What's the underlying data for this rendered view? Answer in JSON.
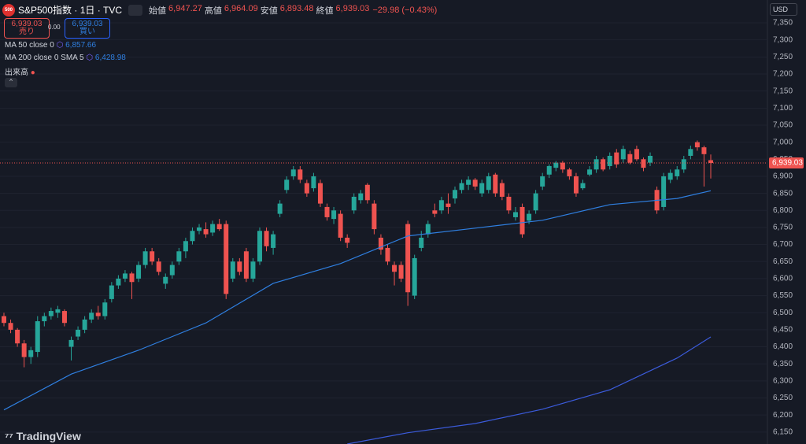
{
  "chart_data": {
    "type": "candlestick",
    "symbol": "S&P500指数 · 1日 · TVC",
    "logo": "500",
    "ohlc_header": [
      {
        "label": "始値",
        "value": "6,947.27"
      },
      {
        "label": "高値",
        "value": "6,964.09"
      },
      {
        "label": "安値",
        "value": "6,893.48"
      },
      {
        "label": "終値",
        "value": "6,939.03"
      }
    ],
    "change": "−29.98 (−0.43%)",
    "sell": {
      "price": "6,939.03",
      "label": "売り"
    },
    "spread": "0.00",
    "buy": {
      "price": "6,939.03",
      "label": "買い"
    },
    "volume_label": "出来高",
    "currency": "USD",
    "brand": "TradingView",
    "price_label": "6,939.03",
    "up_color": "#26a69a",
    "down_color": "#ef5350",
    "ylim": [
      6115,
      7417
    ],
    "yticks": [
      {
        "value": 6150,
        "label": "6,150"
      },
      {
        "value": 6200,
        "label": "6,200"
      },
      {
        "value": 6250,
        "label": "6,250"
      },
      {
        "value": 6300,
        "label": "6,300"
      },
      {
        "value": 6350,
        "label": "6,350"
      },
      {
        "value": 6400,
        "label": "6,400"
      },
      {
        "value": 6450,
        "label": "6,450"
      },
      {
        "value": 6500,
        "label": "6,500"
      },
      {
        "value": 6550,
        "label": "6,550"
      },
      {
        "value": 6600,
        "label": "6,600"
      },
      {
        "value": 6650,
        "label": "6,650"
      },
      {
        "value": 6700,
        "label": "6,700"
      },
      {
        "value": 6750,
        "label": "6,750"
      },
      {
        "value": 6800,
        "label": "6,800"
      },
      {
        "value": 6850,
        "label": "6,850"
      },
      {
        "value": 6900,
        "label": "6,900"
      },
      {
        "value": 6950,
        "label": "6,950"
      },
      {
        "value": 7000,
        "label": "7,000"
      },
      {
        "value": 7050,
        "label": "7,050"
      },
      {
        "value": 7100,
        "label": "7,100"
      },
      {
        "value": 7150,
        "label": "7,150"
      },
      {
        "value": 7200,
        "label": "7,200"
      },
      {
        "value": 7250,
        "label": "7,250"
      },
      {
        "value": 7300,
        "label": "7,300"
      },
      {
        "value": 7350,
        "label": "7,350"
      }
    ],
    "candles": [
      [
        6490,
        6500,
        6460,
        6470
      ],
      [
        6470,
        6480,
        6440,
        6450
      ],
      [
        6450,
        6455,
        6400,
        6410
      ],
      [
        6410,
        6420,
        6340,
        6370
      ],
      [
        6370,
        6400,
        6350,
        6390
      ],
      [
        6385,
        6490,
        6370,
        6475
      ],
      [
        6475,
        6500,
        6460,
        6490
      ],
      [
        6490,
        6515,
        6480,
        6505
      ],
      [
        6500,
        6520,
        6485,
        6510
      ],
      [
        6505,
        6510,
        6460,
        6470
      ],
      [
        6400,
        6430,
        6360,
        6420
      ],
      [
        6430,
        6460,
        6420,
        6450
      ],
      [
        6450,
        6490,
        6440,
        6480
      ],
      [
        6480,
        6510,
        6470,
        6500
      ],
      [
        6500,
        6520,
        6480,
        6490
      ],
      [
        6490,
        6540,
        6480,
        6530
      ],
      [
        6540,
        6590,
        6530,
        6580
      ],
      [
        6580,
        6610,
        6570,
        6600
      ],
      [
        6600,
        6625,
        6590,
        6615
      ],
      [
        6615,
        6620,
        6540,
        6590
      ],
      [
        6600,
        6650,
        6590,
        6640
      ],
      [
        6640,
        6690,
        6630,
        6680
      ],
      [
        6680,
        6690,
        6640,
        6650
      ],
      [
        6650,
        6660,
        6610,
        6620
      ],
      [
        6585,
        6615,
        6570,
        6605
      ],
      [
        6610,
        6650,
        6600,
        6640
      ],
      [
        6650,
        6690,
        6640,
        6680
      ],
      [
        6680,
        6720,
        6660,
        6710
      ],
      [
        6710,
        6750,
        6700,
        6740
      ],
      [
        6740,
        6760,
        6730,
        6750
      ],
      [
        6745,
        6765,
        6720,
        6730
      ],
      [
        6735,
        6770,
        6725,
        6760
      ],
      [
        6760,
        6775,
        6740,
        6745
      ],
      [
        6760,
        6770,
        6540,
        6555
      ],
      [
        6600,
        6660,
        6590,
        6650
      ],
      [
        6650,
        6660,
        6610,
        6620
      ],
      [
        6680,
        6690,
        6590,
        6600
      ],
      [
        6600,
        6660,
        6590,
        6650
      ],
      [
        6650,
        6750,
        6640,
        6740
      ],
      [
        6740,
        6750,
        6680,
        6695
      ],
      [
        6690,
        6740,
        6670,
        6730
      ],
      [
        6790,
        6830,
        6780,
        6820
      ],
      [
        6860,
        6900,
        6850,
        6890
      ],
      [
        6900,
        6930,
        6890,
        6920
      ],
      [
        6920,
        6930,
        6880,
        6890
      ],
      [
        6880,
        6890,
        6840,
        6850
      ],
      [
        6865,
        6910,
        6855,
        6900
      ],
      [
        6880,
        6890,
        6810,
        6820
      ],
      [
        6810,
        6820,
        6770,
        6780
      ],
      [
        6775,
        6810,
        6760,
        6800
      ],
      [
        6790,
        6800,
        6710,
        6720
      ],
      [
        6720,
        6730,
        6690,
        6705
      ],
      [
        6800,
        6850,
        6790,
        6840
      ],
      [
        6830,
        6860,
        6820,
        6850
      ],
      [
        6875,
        6880,
        6820,
        6830
      ],
      [
        6820,
        6830,
        6730,
        6745
      ],
      [
        6720,
        6730,
        6670,
        6685
      ],
      [
        6690,
        6700,
        6640,
        6650
      ],
      [
        6640,
        6650,
        6580,
        6620
      ],
      [
        6640,
        6650,
        6590,
        6600
      ],
      [
        6760,
        6770,
        6520,
        6560
      ],
      [
        6550,
        6670,
        6540,
        6660
      ],
      [
        6690,
        6740,
        6680,
        6720
      ],
      [
        6730,
        6770,
        6720,
        6760
      ],
      [
        6800,
        6820,
        6780,
        6790
      ],
      [
        6800,
        6840,
        6790,
        6830
      ],
      [
        6820,
        6850,
        6790,
        6810
      ],
      [
        6835,
        6870,
        6820,
        6860
      ],
      [
        6860,
        6890,
        6850,
        6880
      ],
      [
        6875,
        6900,
        6860,
        6890
      ],
      [
        6890,
        6895,
        6860,
        6870
      ],
      [
        6850,
        6890,
        6840,
        6880
      ],
      [
        6860,
        6910,
        6850,
        6900
      ],
      [
        6905,
        6910,
        6840,
        6850
      ],
      [
        6880,
        6890,
        6830,
        6840
      ],
      [
        6840,
        6850,
        6790,
        6800
      ],
      [
        6780,
        6810,
        6770,
        6795
      ],
      [
        6810,
        6820,
        6720,
        6730
      ],
      [
        6770,
        6800,
        6760,
        6790
      ],
      [
        6800,
        6860,
        6790,
        6850
      ],
      [
        6870,
        6910,
        6860,
        6900
      ],
      [
        6905,
        6935,
        6895,
        6930
      ],
      [
        6925,
        6945,
        6915,
        6940
      ],
      [
        6940,
        6945,
        6910,
        6920
      ],
      [
        6920,
        6925,
        6890,
        6900
      ],
      [
        6900,
        6910,
        6840,
        6850
      ],
      [
        6865,
        6890,
        6860,
        6880
      ],
      [
        6905,
        6930,
        6900,
        6920
      ],
      [
        6920,
        6960,
        6910,
        6950
      ],
      [
        6950,
        6955,
        6915,
        6920
      ],
      [
        6930,
        6970,
        6920,
        6960
      ],
      [
        6970,
        6980,
        6925,
        6935
      ],
      [
        6950,
        6990,
        6940,
        6980
      ],
      [
        6965,
        6975,
        6935,
        6940
      ],
      [
        6980,
        6990,
        6945,
        6950
      ],
      [
        6950,
        6955,
        6915,
        6925
      ],
      [
        6940,
        6970,
        6930,
        6960
      ],
      [
        6860,
        6870,
        6790,
        6800
      ],
      [
        6810,
        6910,
        6800,
        6900
      ],
      [
        6890,
        6920,
        6880,
        6910
      ],
      [
        6900,
        6930,
        6890,
        6920
      ],
      [
        6920,
        6960,
        6910,
        6950
      ],
      [
        6960,
        6990,
        6950,
        6980
      ],
      [
        7000,
        7005,
        6975,
        6985
      ],
      [
        6985,
        6990,
        6870,
        6965
      ],
      [
        6947.27,
        6964.09,
        6893.48,
        6939.03
      ]
    ],
    "series": [
      {
        "name": "MA 50 close 0",
        "value_label": "6,857.66",
        "color": "#2f7fe0",
        "x": [
          0,
          10,
          20,
          30,
          40,
          50,
          60,
          70,
          80,
          90,
          100,
          105
        ],
        "values": [
          6215,
          6320,
          6390,
          6470,
          6586,
          6644,
          6725,
          6748,
          6771,
          6817,
          6835,
          6857.66
        ]
      },
      {
        "name": "MA 200 close 0 SMA 5",
        "value_label": "6,428.98",
        "color": "#3b5bdb",
        "x": [
          51,
          60,
          70,
          80,
          90,
          100,
          105
        ],
        "values": [
          6115,
          6148,
          6175,
          6217,
          6274,
          6367,
          6428.98
        ]
      }
    ]
  }
}
